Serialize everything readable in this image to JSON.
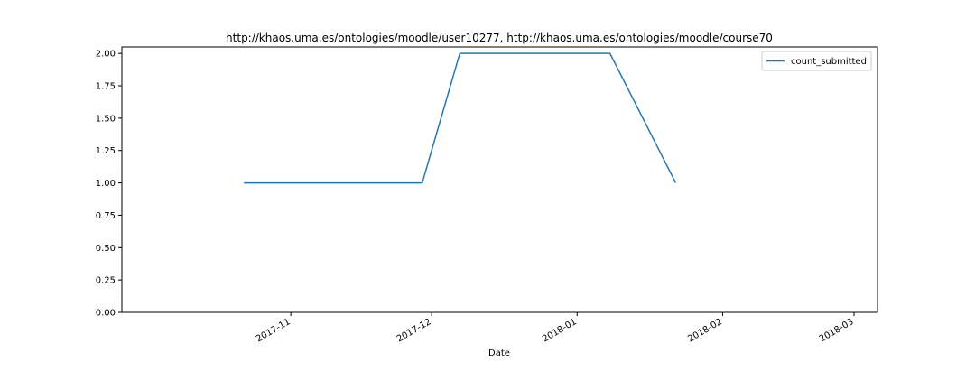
{
  "chart_data": {
    "type": "line",
    "title": "http://khaos.uma.es/ontologies/moodle/user10277, http://khaos.uma.es/ontologies/moodle/course70",
    "xlabel": "Date",
    "ylabel": "",
    "x_axis_type": "date",
    "xlim": [
      "2017-09-26",
      "2018-03-06"
    ],
    "ylim": [
      0,
      2.05
    ],
    "x_ticks": [
      "2017-11-01",
      "2017-12-01",
      "2018-01-01",
      "2018-02-01",
      "2018-03-01"
    ],
    "x_tick_labels": [
      "2017-11",
      "2017-12",
      "2018-01",
      "2018-02",
      "2018-03"
    ],
    "y_ticks": [
      0,
      0.25,
      0.5,
      0.75,
      1.0,
      1.25,
      1.5,
      1.75,
      2.0
    ],
    "y_tick_labels": [
      "0.00",
      "0.25",
      "0.50",
      "0.75",
      "1.00",
      "1.25",
      "1.50",
      "1.75",
      "2.00"
    ],
    "grid": false,
    "legend_position": "top-right",
    "series": [
      {
        "name": "count_submitted",
        "color": "#1f77b4",
        "x": [
          "2017-10-22",
          "2017-11-29",
          "2017-12-07",
          "2018-01-08",
          "2018-01-22"
        ],
        "y": [
          1,
          1,
          2,
          2,
          1
        ]
      }
    ]
  }
}
